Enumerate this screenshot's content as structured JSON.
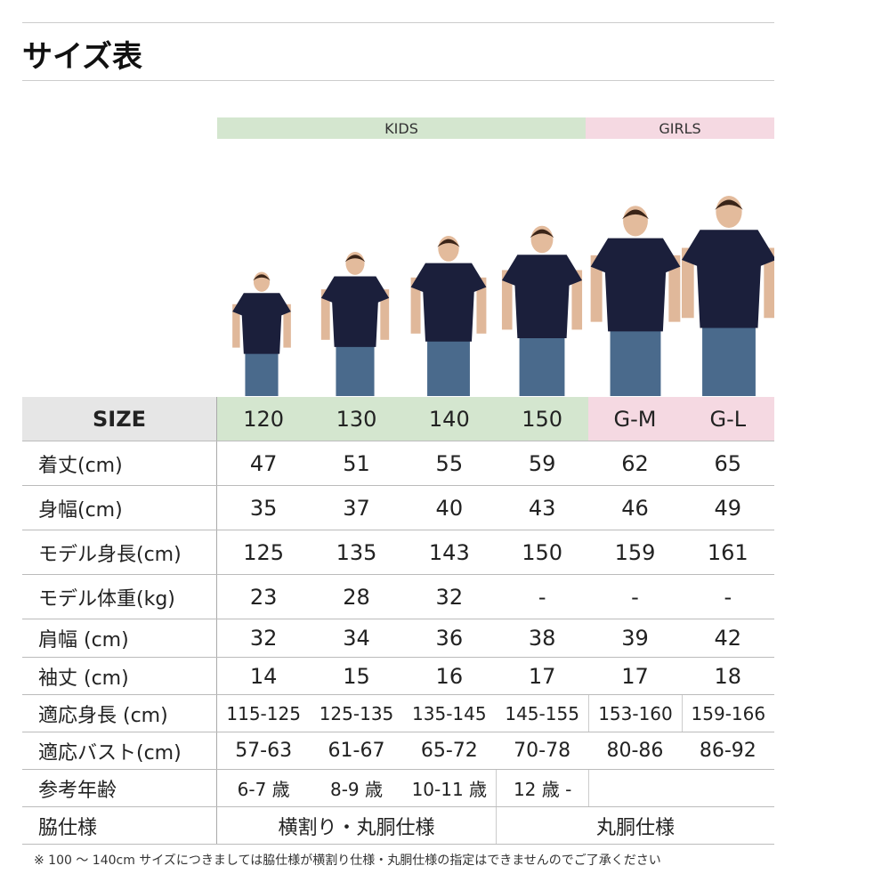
{
  "title": "サイズ表",
  "groups": {
    "kids": "KIDS",
    "girls": "GIRLS"
  },
  "colors": {
    "kids": "#d4e6cf",
    "girls": "#f5d9e2",
    "size_label_bg": "#e6e6e6",
    "shirt": "#1b1f3b",
    "jeans": "#4a6a8c"
  },
  "size_label": "SIZE",
  "sizes": [
    "120",
    "130",
    "140",
    "150",
    "G-M",
    "G-L"
  ],
  "rows": [
    {
      "label": "着丈(cm)",
      "values": [
        "47",
        "51",
        "55",
        "59",
        "62",
        "65"
      ]
    },
    {
      "label": "身幅(cm)",
      "values": [
        "35",
        "37",
        "40",
        "43",
        "46",
        "49"
      ]
    },
    {
      "label": "モデル身長(cm)",
      "values": [
        "125",
        "135",
        "143",
        "150",
        "159",
        "161"
      ]
    },
    {
      "label": "モデル体重(kg)",
      "values": [
        "23",
        "28",
        "32",
        "-",
        "-",
        "-"
      ]
    },
    {
      "label": "肩幅 (cm)",
      "values": [
        "32",
        "34",
        "36",
        "38",
        "39",
        "42"
      ]
    },
    {
      "label": "袖丈 (cm)",
      "values": [
        "14",
        "15",
        "16",
        "17",
        "17",
        "18"
      ]
    },
    {
      "label": "適応身長 (cm)",
      "values": [
        "115-125",
        "125-135",
        "135-145",
        "145-155",
        "153-160",
        "159-166"
      ]
    },
    {
      "label": "適応バスト(cm)",
      "values": [
        "57-63",
        "61-67",
        "65-72",
        "70-78",
        "80-86",
        "86-92"
      ]
    },
    {
      "label": "参考年齢",
      "values": [
        "6-7 歳",
        "8-9 歳",
        "10-11 歳",
        "12 歳 -"
      ]
    },
    {
      "label": "脇仕様",
      "values": [
        "横割り・丸胴仕様",
        "丸胴仕様"
      ]
    }
  ],
  "note": "※ 100 〜 140cm サイズにつきましては脇仕様が横割り仕様・丸胴仕様の指定はできませんのでご了承ください"
}
